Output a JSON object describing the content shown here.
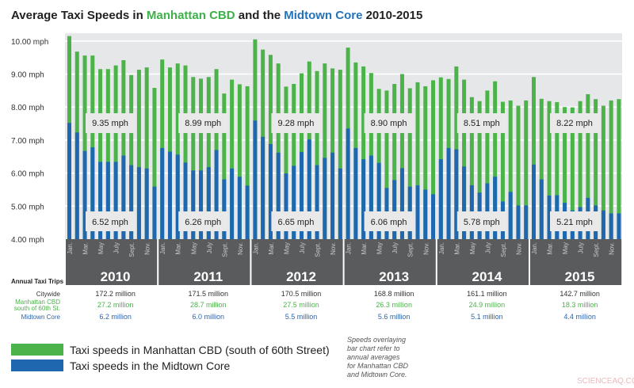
{
  "title": {
    "part1": "Average Taxi Speeds in ",
    "part2": "Manhattan CBD",
    "part3": " and the ",
    "part4": "Midtown Core",
    "part5": " 2010-2015"
  },
  "colors": {
    "cbd": "#4cb24a",
    "midtown": "#1f68b0",
    "title_green": "#3db049",
    "title_blue": "#2472b9",
    "band": "#5a5b5d",
    "plot_bg": "#e6e7e8"
  },
  "chart_data": {
    "type": "bar",
    "ylim": [
      4,
      10
    ],
    "yticks": [
      "4.00 mph",
      "5.00 mph",
      "6.00 mph",
      "7.00 mph",
      "8.00 mph",
      "9.00 mph",
      "10.00 mph"
    ],
    "grid": true,
    "years": [
      "2010",
      "2011",
      "2012",
      "2013",
      "2014",
      "2015"
    ],
    "month_labels": [
      "Jan.",
      "Mar.",
      "May",
      "July",
      "Sept.",
      "Nov."
    ],
    "series": [
      {
        "name": "Taxi speeds in Manhattan CBD (south of 60th Street)",
        "color": "#4cb24a",
        "values": [
          10.15,
          9.68,
          9.56,
          9.56,
          9.15,
          9.15,
          9.26,
          9.42,
          8.97,
          9.13,
          9.2,
          8.58,
          9.44,
          9.2,
          9.32,
          9.26,
          8.91,
          8.86,
          8.91,
          9.15,
          8.41,
          8.83,
          8.69,
          8.63,
          10.05,
          9.74,
          9.58,
          9.32,
          8.62,
          8.7,
          9.02,
          9.38,
          9.09,
          9.32,
          9.17,
          9.13,
          9.8,
          9.35,
          9.23,
          9.03,
          8.55,
          8.5,
          8.7,
          9.0,
          8.57,
          8.75,
          8.63,
          8.81,
          8.9,
          8.85,
          9.23,
          8.83,
          8.3,
          8.18,
          8.5,
          8.78,
          8.16,
          8.2,
          8.04,
          8.2,
          8.91,
          8.25,
          8.18,
          8.15,
          8.0,
          7.99,
          8.18,
          8.39,
          8.24,
          8.04,
          8.2,
          8.24
        ]
      },
      {
        "name": "Taxi speeds in the Midtown Core",
        "color": "#1f68b0",
        "values": [
          7.52,
          7.23,
          6.67,
          6.78,
          6.34,
          6.34,
          6.34,
          6.53,
          6.24,
          6.18,
          6.14,
          5.59,
          6.76,
          6.65,
          6.56,
          6.32,
          6.08,
          6.08,
          6.18,
          6.7,
          5.81,
          6.14,
          5.89,
          5.62,
          7.59,
          7.1,
          6.88,
          6.62,
          5.99,
          6.22,
          6.64,
          7.02,
          6.24,
          6.46,
          6.62,
          6.14,
          7.35,
          6.76,
          6.42,
          6.53,
          6.31,
          5.55,
          5.79,
          6.15,
          5.59,
          5.63,
          5.5,
          5.36,
          6.42,
          6.76,
          6.72,
          6.2,
          5.63,
          5.41,
          5.69,
          5.89,
          5.14,
          5.43,
          5.02,
          5.02,
          6.26,
          5.81,
          5.32,
          5.33,
          5.1,
          4.87,
          4.97,
          5.25,
          5.02,
          4.87,
          4.78,
          4.78
        ]
      }
    ],
    "annual_cbd_labels": [
      "9.35 mph",
      "8.99 mph",
      "9.28 mph",
      "8.90 mph",
      "8.51 mph",
      "8.22 mph"
    ],
    "annual_midtown_labels": [
      "6.52 mph",
      "6.26 mph",
      "6.65 mph",
      "6.06 mph",
      "5.78 mph",
      "5.21 mph"
    ]
  },
  "trips": {
    "heading": "Annual Taxi Trips",
    "citywide_label": "Citywide",
    "cbd_label_1": "Manhattan CBD",
    "cbd_label_2": "south of 60th St.",
    "midtown_label": "Midtown Core",
    "citywide": [
      "172.2 million",
      "171.5 million",
      "170.5 million",
      "168.8 million",
      "161.1 million",
      "142.7 million"
    ],
    "cbd": [
      "27.2 million",
      "28.7 million",
      "27.5 million",
      "26.3 million",
      "24.9 million",
      "18.3 million"
    ],
    "midtown": [
      "6.2 million",
      "6.0 million",
      "5.5 million",
      "5.6 million",
      "5.1 million",
      "4.4 million"
    ]
  },
  "legend": {
    "cbd": "Taxi speeds in Manhattan CBD (south of 60th Street)",
    "midtown": "Taxi speeds in the Midtown Core"
  },
  "note": [
    "Speeds overlaying",
    "bar chart refer to",
    "annual averages",
    "for Manhattan CBD",
    "and Midtown Core."
  ],
  "watermark": "SCIENCEAQ.COM"
}
